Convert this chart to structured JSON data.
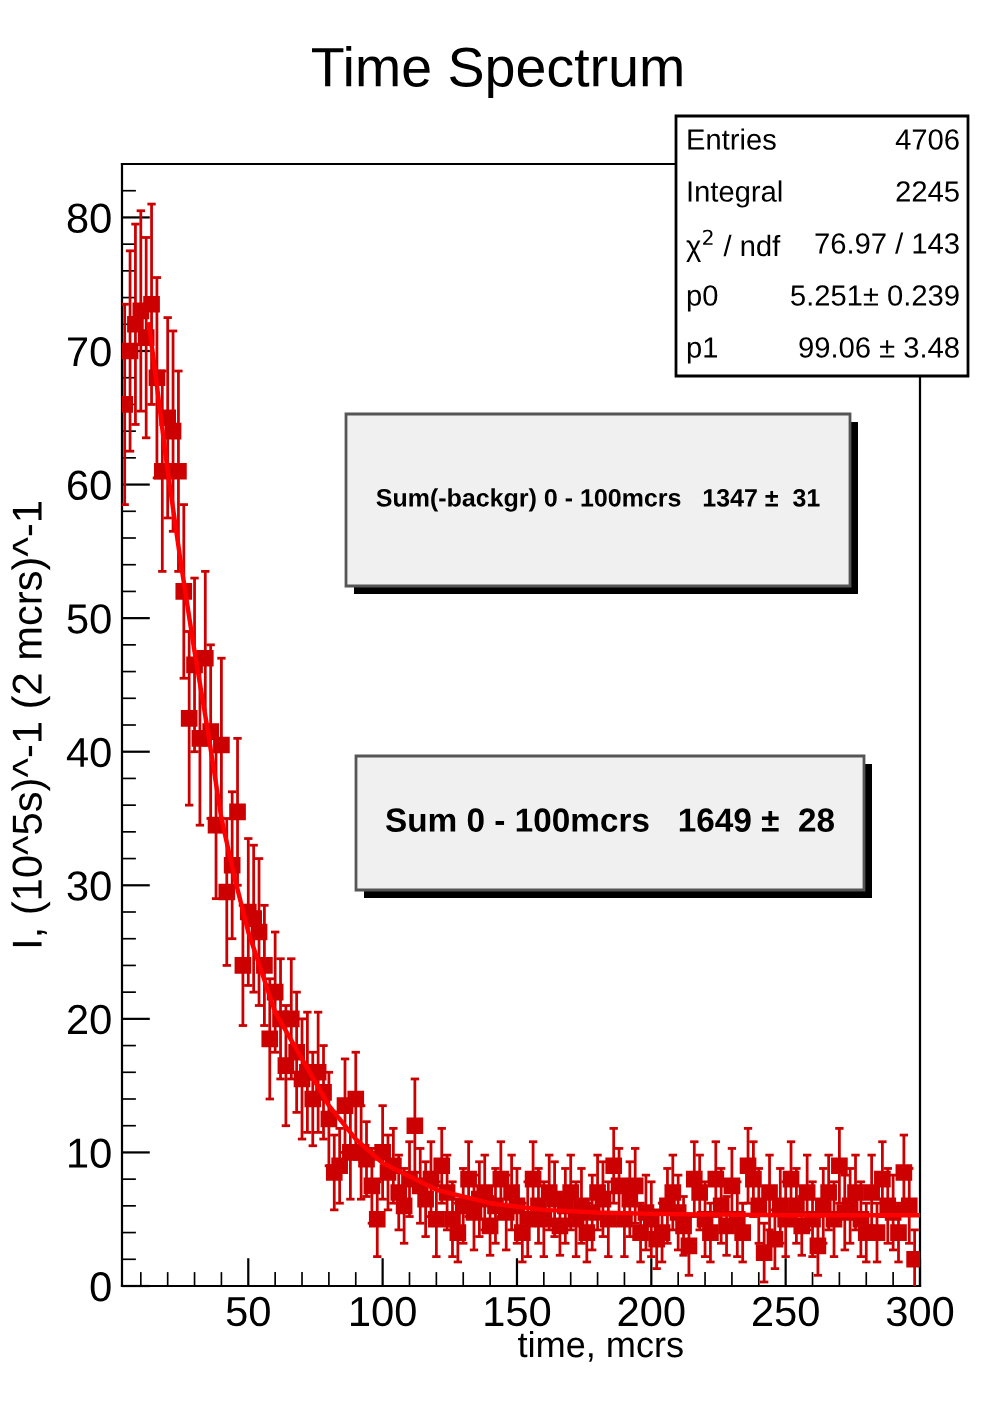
{
  "chart_data": {
    "type": "scatter",
    "title": "Time Spectrum",
    "xlabel": "time, mcrs",
    "ylabel": "I, (10^5s)^-1 (2 mcrs)^-1",
    "xlim": [
      3,
      300
    ],
    "xticks": [
      50,
      100,
      150,
      200,
      250,
      300
    ],
    "ylim": [
      0,
      84
    ],
    "yticks": [
      0,
      10,
      20,
      30,
      40,
      50,
      60,
      70,
      80
    ],
    "grid": false,
    "legend": false,
    "marker": "square",
    "series": [
      {
        "color": "#cc0000",
        "x": [
          4,
          6,
          8,
          10,
          12,
          14,
          16,
          18,
          20,
          22,
          24,
          26,
          28,
          30,
          32,
          34,
          36,
          38,
          40,
          42,
          44,
          46,
          48,
          50,
          52,
          54,
          56,
          58,
          60,
          62,
          64,
          66,
          68,
          70,
          72,
          74,
          76,
          78,
          80,
          82,
          84,
          86,
          88,
          90,
          92,
          94,
          96,
          98,
          100,
          102,
          104,
          106,
          108,
          110,
          112,
          114,
          116,
          118,
          120,
          122,
          124,
          126,
          128,
          130,
          132,
          134,
          136,
          138,
          140,
          142,
          144,
          146,
          148,
          150,
          152,
          154,
          156,
          158,
          160,
          162,
          164,
          166,
          168,
          170,
          172,
          174,
          176,
          178,
          180,
          182,
          184,
          186,
          188,
          190,
          192,
          194,
          196,
          198,
          200,
          202,
          204,
          206,
          208,
          210,
          212,
          214,
          216,
          218,
          220,
          222,
          224,
          226,
          228,
          230,
          232,
          234,
          236,
          238,
          240,
          242,
          244,
          246,
          248,
          250,
          252,
          254,
          256,
          258,
          260,
          262,
          264,
          266,
          268,
          270,
          272,
          274,
          276,
          278,
          280,
          282,
          284,
          286,
          288,
          290,
          292,
          294,
          296,
          298
        ],
        "values": [
          66,
          70,
          72,
          73,
          71,
          73.5,
          68,
          61,
          65,
          64,
          61,
          52,
          42.5,
          46.5,
          41,
          47,
          41.5,
          34.5,
          40.5,
          29.5,
          31.5,
          35.5,
          24,
          28,
          27.5,
          26.5,
          24,
          18.5,
          22,
          20,
          16.5,
          20,
          17.5,
          15.5,
          16,
          14,
          16,
          14.5,
          12.5,
          8.5,
          9,
          13.5,
          10,
          14,
          10,
          9.5,
          7.5,
          5,
          10,
          8.5,
          9,
          7,
          6,
          8,
          12,
          7.5,
          6.5,
          8,
          5,
          9,
          7,
          5,
          4,
          6,
          8,
          5.5,
          6.5,
          7,
          4.5,
          6,
          8,
          5.5,
          7,
          6,
          4,
          5,
          8,
          6,
          5,
          7,
          6.5,
          4.5,
          6,
          7,
          5,
          6,
          4,
          5.5,
          7,
          6.5,
          5,
          9,
          7.5,
          5,
          6.5,
          7.5,
          4,
          5.5,
          5,
          3.5,
          4,
          6,
          7,
          5.5,
          4.5,
          3,
          8,
          7,
          5,
          4,
          8,
          6,
          4.5,
          7.5,
          5,
          4,
          9,
          8,
          6,
          2.5,
          7,
          3.5,
          6,
          5,
          8,
          6,
          4.5,
          7,
          5,
          3,
          6,
          7,
          5,
          9,
          5.5,
          6,
          7,
          5,
          4,
          7,
          4,
          8,
          6,
          5.5,
          4,
          8.5,
          6,
          2
        ],
        "errors": [
          7.5,
          7.5,
          7.5,
          7.5,
          7.5,
          7.5,
          7.5,
          7.5,
          7.5,
          7.5,
          7.5,
          6.5,
          6.5,
          6.5,
          6.5,
          6.5,
          6.5,
          5.5,
          6.5,
          5.5,
          5.5,
          5.5,
          4.5,
          5.5,
          5.5,
          5.5,
          4.5,
          4.5,
          4.5,
          4.5,
          4.5,
          4.5,
          4.5,
          4.5,
          4.5,
          3.5,
          4.5,
          3.5,
          3.5,
          2.8,
          2.8,
          3.5,
          3.5,
          3.5,
          3.5,
          2.8,
          2.8,
          2.8,
          3.5,
          2.8,
          2.8,
          2.8,
          2.8,
          2.8,
          3.5,
          2.8,
          2.8,
          2.8,
          2.8,
          2.8,
          2.8,
          2.8,
          2.2,
          2.8,
          2.8,
          2.8,
          2.8,
          2.8,
          2.2,
          2.8,
          2.8,
          2.8,
          2.8,
          2.8,
          2.2,
          2.8,
          2.8,
          2.8,
          2.8,
          2.8,
          2.8,
          2.2,
          2.8,
          2.8,
          2.8,
          2.8,
          2.2,
          2.8,
          2.8,
          2.8,
          2.8,
          2.8,
          2.8,
          2.8,
          2.8,
          2.8,
          2.2,
          2.8,
          2.8,
          2.2,
          2.2,
          2.8,
          2.8,
          2.8,
          2.2,
          2.2,
          2.8,
          2.8,
          2.8,
          2.2,
          2.8,
          2.8,
          2.2,
          2.8,
          2.8,
          2.2,
          2.8,
          2.8,
          2.8,
          2.2,
          2.8,
          2.2,
          2.8,
          2.8,
          2.8,
          2.8,
          2.2,
          2.8,
          2.8,
          2.2,
          2.8,
          2.8,
          2.8,
          2.8,
          2.8,
          2.8,
          2.8,
          2.8,
          2.2,
          2.8,
          2.2,
          2.8,
          2.8,
          2.8,
          2.2,
          2.8,
          2.8,
          2.2
        ]
      },
      {
        "type": "line",
        "marker": "none",
        "color": "#ff0000",
        "x": [
          13,
          15,
          20,
          25,
          30,
          35,
          40,
          45,
          50,
          60,
          70,
          80,
          90,
          100,
          120,
          140,
          160,
          180,
          200,
          250,
          300
        ],
        "values": [
          72,
          69,
          61,
          54,
          47.5,
          41.5,
          35,
          30.5,
          26.5,
          20.5,
          17,
          13.5,
          11,
          9.2,
          7.2,
          6.2,
          5.7,
          5.5,
          5.4,
          5.3,
          5.3
        ]
      }
    ],
    "annotations": [
      "Entries",
      "4706",
      "Integral",
      "2245",
      "χ$^{2}$ / ndf",
      "76.97 / 143",
      "p0",
      "5.251± 0.239",
      "p1",
      "99.06 ± 3.48",
      "Sum(-backgr) 0 - 100mcrs   1347 ±  31",
      "Sum 0 - 100mcrs   1649 ±  28"
    ]
  }
}
